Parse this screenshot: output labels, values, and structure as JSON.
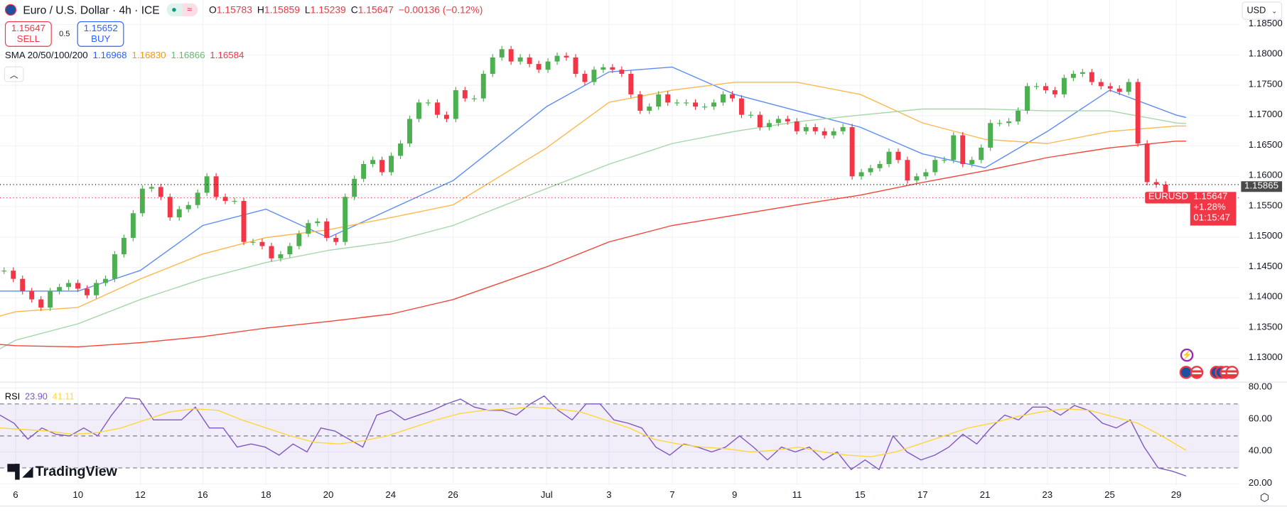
{
  "header": {
    "symbol_title": "Euro / U.S. Dollar · 4h · ICE",
    "status_icons": [
      "market-open-dot-icon",
      "delayed-data-icon"
    ],
    "ohlc": [
      {
        "k": "O",
        "v": "1.15783"
      },
      {
        "k": "H",
        "v": "1.15859"
      },
      {
        "k": "L",
        "v": "1.15239"
      },
      {
        "k": "C",
        "v": "1.15647"
      },
      {
        "k": "",
        "v": "−0.00136 (−0.12%)"
      }
    ]
  },
  "trade": {
    "sell_price": "1.15647",
    "sell_label": "SELL",
    "spread": "0.5",
    "buy_price": "1.15652",
    "buy_label": "BUY"
  },
  "sma_legend": {
    "label": "SMA 20/50/100/200",
    "values": [
      "1.16968",
      "1.16830",
      "1.16866",
      "1.16584"
    ]
  },
  "rsi_legend": {
    "label": "RSI",
    "value": "23.90",
    "ma_value": "41.11"
  },
  "logo": "TradingView",
  "currency_select": "USD",
  "price_markers": {
    "prev_close": "1.15865",
    "symbol": "EURUSD",
    "last": "1.15647",
    "change": "+1.28%",
    "countdown": "01:15:47"
  },
  "colors": {
    "up": "#4caf50",
    "down": "#f23645",
    "sma20": "#5b8cf5",
    "sma50": "#ffb74d",
    "sma100": "#a5d6a7",
    "sma200": "#f44336",
    "rsi": "#7e57c2",
    "rsi_ma": "#fdd835"
  },
  "chart_data": [
    {
      "type": "candlestick",
      "title": "Euro / U.S. Dollar · 4h · ICE",
      "y_ticks": [
        "1.18500",
        "1.18000",
        "1.17500",
        "1.17000",
        "1.16500",
        "1.16000",
        "1.15500",
        "1.15000",
        "1.14500",
        "1.14000",
        "1.13500",
        "1.13000"
      ],
      "ylim": [
        1.125,
        1.1885
      ],
      "x_ticks": [
        "6",
        "10",
        "12",
        "16",
        "18",
        "20",
        "24",
        "26",
        "Jul",
        "3",
        "7",
        "9",
        "11",
        "15",
        "17",
        "21",
        "23",
        "25",
        "29"
      ],
      "close": [
        1.14446,
        1.14311,
        1.14108,
        1.13973,
        1.13838,
        1.14108,
        1.14176,
        1.14243,
        1.14149,
        1.14041,
        1.14243,
        1.14311,
        1.14716,
        1.14986,
        1.15392,
        1.15797,
        1.15824,
        1.15662,
        1.15324,
        1.15459,
        1.15527,
        1.1573,
        1.16,
        1.15662,
        1.15595,
        1.15595,
        1.14919,
        1.14919,
        1.14851,
        1.14649,
        1.14716,
        1.14851,
        1.15054,
        1.1523,
        1.15257,
        1.14986,
        1.14919,
        1.15662,
        1.15959,
        1.16203,
        1.1627,
        1.16068,
        1.16338,
        1.16541,
        1.16946,
        1.17216,
        1.17216,
        1.17014,
        1.16946,
        1.17419,
        1.17284,
        1.17284,
        1.17689,
        1.17959,
        1.18095,
        1.17892,
        1.17959,
        1.17851,
        1.17757,
        1.17892,
        1.17986,
        1.17959,
        1.17689,
        1.17554,
        1.17757,
        1.17797,
        1.17757,
        1.17689,
        1.17351,
        1.17081,
        1.17149,
        1.17351,
        1.17216,
        1.17216,
        1.17216,
        1.17149,
        1.17149,
        1.17216,
        1.17351,
        1.17284,
        1.17014,
        1.17014,
        1.16811,
        1.16878,
        1.16946,
        1.16905,
        1.16743,
        1.16811,
        1.16743,
        1.16676,
        1.16743,
        1.16811,
        1.16,
        1.16068,
        1.16135,
        1.16203,
        1.16405,
        1.1627,
        1.15932,
        1.16,
        1.16068,
        1.1627,
        1.1627,
        1.16676,
        1.16203,
        1.1627,
        1.16473,
        1.16878,
        1.16878,
        1.16905,
        1.17081,
        1.17486,
        1.17486,
        1.17419,
        1.17351,
        1.17622,
        1.17689,
        1.17716,
        1.17554,
        1.17486,
        1.17446,
        1.17392,
        1.17554,
        1.16541,
        1.15905,
        1.15865,
        1.15647
      ],
      "series": [
        {
          "name": "SMA 20",
          "values": [
            1.1411,
            1.1411,
            1.1411,
            1.1445,
            1.1519,
            1.1546,
            1.1499,
            1.1546,
            1.1593,
            1.1715,
            1.1772,
            1.178,
            1.1735,
            1.1708,
            1.1681,
            1.1637,
            1.1614,
            1.1674,
            1.1742,
            1.1701,
            1.1697
          ]
        },
        {
          "name": "SMA 50",
          "values": [
            1.137,
            1.1377,
            1.1384,
            1.1431,
            1.1472,
            1.1499,
            1.1512,
            1.1532,
            1.1553,
            1.1647,
            1.1722,
            1.1742,
            1.1755,
            1.1755,
            1.1735,
            1.1688,
            1.1661,
            1.1654,
            1.1674,
            1.1683,
            1.1683
          ]
        },
        {
          "name": "SMA 100",
          "values": [
            1.1316,
            1.133,
            1.1357,
            1.1397,
            1.1431,
            1.1458,
            1.1478,
            1.1492,
            1.1519,
            1.158,
            1.162,
            1.1654,
            1.1674,
            1.169,
            1.1701,
            1.1711,
            1.1711,
            1.1708,
            1.1708,
            1.1688,
            1.1687
          ]
        },
        {
          "name": "SMA 200",
          "values": [
            1.1323,
            1.1321,
            1.1319,
            1.1326,
            1.1336,
            1.135,
            1.1361,
            1.1373,
            1.1397,
            1.1451,
            1.1492,
            1.1519,
            1.1536,
            1.1553,
            1.1569,
            1.159,
            1.1609,
            1.1631,
            1.1647,
            1.1658,
            1.1658
          ]
        }
      ]
    },
    {
      "type": "line",
      "title": "RSI",
      "y_ticks": [
        "80.00",
        "60.00",
        "40.00",
        "20.00"
      ],
      "ylim": [
        17,
        82
      ],
      "bands": [
        70,
        50,
        30
      ],
      "series": [
        {
          "name": "RSI",
          "values": [
            63,
            58,
            48,
            55,
            51,
            50,
            55,
            50,
            63,
            74,
            73,
            60,
            60,
            60,
            68,
            55,
            55,
            43,
            45,
            43,
            38,
            45,
            40,
            55,
            53,
            48,
            43,
            63,
            66,
            60,
            63,
            66,
            70,
            73,
            68,
            66,
            66,
            63,
            70,
            75,
            66,
            60,
            70,
            70,
            60,
            58,
            55,
            43,
            38,
            45,
            43,
            40,
            43,
            50,
            43,
            35,
            43,
            40,
            43,
            35,
            40,
            29,
            35,
            29,
            50,
            40,
            35,
            38,
            43,
            51,
            45,
            55,
            63,
            60,
            68,
            68,
            63,
            69,
            66,
            58,
            55,
            60,
            43,
            30,
            28,
            25
          ]
        },
        {
          "name": "RSI MA",
          "values": [
            55,
            54,
            53,
            51,
            52,
            55,
            60,
            65,
            67,
            66,
            60,
            55,
            50,
            46,
            45,
            47,
            50,
            55,
            60,
            64,
            66,
            67,
            68,
            67,
            65,
            60,
            55,
            48,
            45,
            43,
            42,
            40,
            41,
            43,
            40,
            38,
            37,
            40,
            45,
            50,
            55,
            58,
            62,
            65,
            67,
            66,
            62,
            58,
            50,
            41
          ]
        }
      ]
    }
  ]
}
